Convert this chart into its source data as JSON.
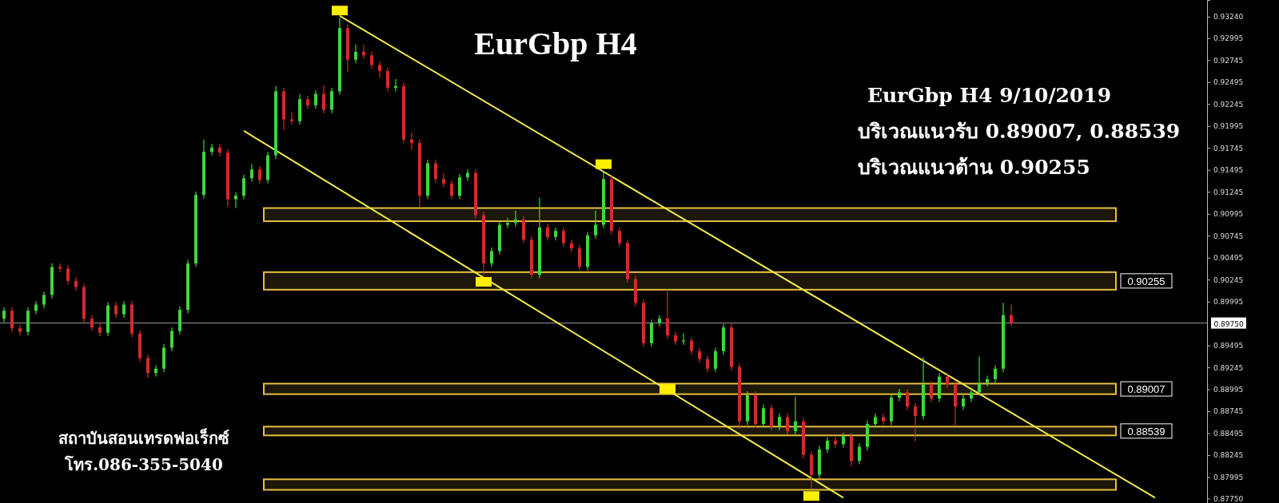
{
  "chart_data": {
    "type": "candlestick",
    "title": "EurGbp H4",
    "annotations": [
      "EurGbp H4 9/10/2019",
      "บริเวณแนวรับ 0.89007, 0.88539",
      "บริเวณแนวต้าน 0.90255",
      "สถาบันสอนเทรดฟอเร็กซ์",
      "โทร.086-355-5040"
    ],
    "categories": [
      null,
      null,
      null,
      null,
      null,
      null,
      null,
      null,
      null,
      null,
      null,
      null,
      null,
      null,
      null,
      null,
      null,
      null,
      null,
      null,
      null,
      null,
      null,
      null,
      null,
      null,
      null,
      null,
      null,
      null,
      null,
      null,
      null,
      null,
      null,
      null,
      null,
      null,
      null,
      null,
      null,
      null,
      null,
      null,
      null,
      null,
      null,
      null,
      null,
      null,
      null,
      null,
      null,
      null,
      null,
      null,
      null,
      null,
      null,
      null,
      null,
      null,
      null,
      null,
      null,
      null,
      null,
      null,
      null,
      null,
      null,
      null,
      null,
      null,
      null,
      null,
      null,
      null,
      null,
      null,
      null,
      null,
      null,
      null,
      null,
      null,
      null,
      null,
      null,
      null,
      null,
      null,
      null,
      null,
      null,
      null,
      null,
      null,
      null,
      null,
      null,
      null,
      null,
      null,
      null,
      null,
      null,
      null,
      null,
      null,
      null,
      null,
      null,
      null,
      null,
      null,
      null,
      null,
      null,
      null,
      null,
      null,
      null,
      null,
      null,
      null,
      null,
      null,
      null,
      null,
      null,
      null,
      null,
      null,
      null,
      null,
      null,
      null,
      null,
      null,
      null,
      null,
      null,
      null,
      null,
      null,
      null,
      null,
      null,
      null,
      null
    ],
    "ohlc": [
      [
        0.898,
        0.8993,
        0.8976,
        0.8989
      ],
      [
        0.8989,
        0.8993,
        0.8965,
        0.8969
      ],
      [
        0.8969,
        0.8973,
        0.8961,
        0.8965
      ],
      [
        0.8965,
        0.8993,
        0.8961,
        0.8989
      ],
      [
        0.8989,
        0.9,
        0.8985,
        0.8996
      ],
      [
        0.8996,
        0.9011,
        0.8992,
        0.9007
      ],
      [
        0.9007,
        0.9043,
        0.9003,
        0.9039
      ],
      [
        0.9039,
        0.9043,
        0.9033,
        0.9037
      ],
      [
        0.9037,
        0.9041,
        0.9019,
        0.9023
      ],
      [
        0.9023,
        0.9027,
        0.9012,
        0.9016
      ],
      [
        0.9016,
        0.902,
        0.8976,
        0.898
      ],
      [
        0.898,
        0.8984,
        0.8966,
        0.897
      ],
      [
        0.897,
        0.8974,
        0.896,
        0.8964
      ],
      [
        0.8964,
        0.8999,
        0.896,
        0.8995
      ],
      [
        0.8995,
        0.8999,
        0.8981,
        0.8985
      ],
      [
        0.8985,
        0.9,
        0.8981,
        0.8996
      ],
      [
        0.8996,
        0.9,
        0.8959,
        0.8963
      ],
      [
        0.8963,
        0.8967,
        0.8931,
        0.8935
      ],
      [
        0.8935,
        0.8939,
        0.8912,
        0.8918
      ],
      [
        0.8918,
        0.8927,
        0.8914,
        0.8923
      ],
      [
        0.8923,
        0.8951,
        0.8919,
        0.8947
      ],
      [
        0.8947,
        0.897,
        0.8943,
        0.8966
      ],
      [
        0.8966,
        0.8994,
        0.8962,
        0.899
      ],
      [
        0.899,
        0.9047,
        0.8986,
        0.9043
      ],
      [
        0.9043,
        0.9125,
        0.9039,
        0.9121
      ],
      [
        0.9121,
        0.9184,
        0.9117,
        0.917
      ],
      [
        0.917,
        0.9179,
        0.9166,
        0.9175
      ],
      [
        0.9175,
        0.9179,
        0.9165,
        0.9169
      ],
      [
        0.9169,
        0.9173,
        0.9108,
        0.9116
      ],
      [
        0.9116,
        0.9124,
        0.9106,
        0.912
      ],
      [
        0.912,
        0.9144,
        0.9116,
        0.914
      ],
      [
        0.914,
        0.9156,
        0.9136,
        0.915
      ],
      [
        0.915,
        0.9154,
        0.9134,
        0.9138
      ],
      [
        0.9138,
        0.917,
        0.9134,
        0.9166
      ],
      [
        0.9166,
        0.9245,
        0.9162,
        0.9239
      ],
      [
        0.9239,
        0.9243,
        0.9195,
        0.9207
      ],
      [
        0.9207,
        0.9215,
        0.9201,
        0.9205
      ],
      [
        0.9205,
        0.9236,
        0.9201,
        0.923
      ],
      [
        0.923,
        0.9234,
        0.9219,
        0.9223
      ],
      [
        0.9223,
        0.924,
        0.9219,
        0.9236
      ],
      [
        0.9236,
        0.9246,
        0.9214,
        0.9218
      ],
      [
        0.9218,
        0.9243,
        0.9214,
        0.9239
      ],
      [
        0.9239,
        0.9323,
        0.9235,
        0.9311
      ],
      [
        0.9311,
        0.9315,
        0.9261,
        0.9275
      ],
      [
        0.9275,
        0.9292,
        0.9271,
        0.9284
      ],
      [
        0.9284,
        0.9292,
        0.9276,
        0.928
      ],
      [
        0.928,
        0.9284,
        0.9265,
        0.9269
      ],
      [
        0.9269,
        0.9273,
        0.9254,
        0.9262
      ],
      [
        0.9262,
        0.9266,
        0.9239,
        0.9243
      ],
      [
        0.9243,
        0.9253,
        0.9239,
        0.9245
      ],
      [
        0.9245,
        0.9249,
        0.918,
        0.9184
      ],
      [
        0.9184,
        0.9192,
        0.9172,
        0.918
      ],
      [
        0.918,
        0.9184,
        0.9107,
        0.912
      ],
      [
        0.912,
        0.9161,
        0.9116,
        0.9157
      ],
      [
        0.9157,
        0.9161,
        0.9135,
        0.9139
      ],
      [
        0.9139,
        0.9146,
        0.913,
        0.9134
      ],
      [
        0.9134,
        0.9138,
        0.9116,
        0.912
      ],
      [
        0.912,
        0.9145,
        0.9116,
        0.9141
      ],
      [
        0.9141,
        0.915,
        0.9137,
        0.9146
      ],
      [
        0.9146,
        0.915,
        0.9094,
        0.9098
      ],
      [
        0.9098,
        0.9102,
        0.903,
        0.9043
      ],
      [
        0.9043,
        0.9061,
        0.9039,
        0.9057
      ],
      [
        0.9057,
        0.9091,
        0.9053,
        0.9087
      ],
      [
        0.9087,
        0.9095,
        0.9083,
        0.9089
      ],
      [
        0.9089,
        0.9103,
        0.9085,
        0.9093
      ],
      [
        0.9093,
        0.9097,
        0.9066,
        0.907
      ],
      [
        0.907,
        0.9074,
        0.9026,
        0.903
      ],
      [
        0.903,
        0.9118,
        0.9026,
        0.9084
      ],
      [
        0.9084,
        0.9088,
        0.9069,
        0.9073
      ],
      [
        0.9073,
        0.9084,
        0.9069,
        0.908
      ],
      [
        0.908,
        0.9084,
        0.9062,
        0.9066
      ],
      [
        0.9066,
        0.907,
        0.9056,
        0.906
      ],
      [
        0.906,
        0.9064,
        0.9035,
        0.9039
      ],
      [
        0.9039,
        0.9079,
        0.9035,
        0.9075
      ],
      [
        0.9075,
        0.9103,
        0.9071,
        0.9087
      ],
      [
        0.9087,
        0.9148,
        0.9083,
        0.9139
      ],
      [
        0.9139,
        0.9143,
        0.9076,
        0.908
      ],
      [
        0.908,
        0.9084,
        0.9062,
        0.9066
      ],
      [
        0.9066,
        0.907,
        0.9021,
        0.9025
      ],
      [
        0.9025,
        0.9029,
        0.8994,
        0.8998
      ],
      [
        0.8998,
        0.9002,
        0.8948,
        0.8952
      ],
      [
        0.8952,
        0.8979,
        0.8948,
        0.8975
      ],
      [
        0.8975,
        0.8984,
        0.8971,
        0.898
      ],
      [
        0.898,
        0.9013,
        0.8957,
        0.8961
      ],
      [
        0.8961,
        0.8965,
        0.895,
        0.8954
      ],
      [
        0.8954,
        0.8963,
        0.895,
        0.8955
      ],
      [
        0.8955,
        0.8959,
        0.8939,
        0.8943
      ],
      [
        0.8943,
        0.8947,
        0.893,
        0.8934
      ],
      [
        0.8934,
        0.8938,
        0.8919,
        0.8923
      ],
      [
        0.8923,
        0.8947,
        0.8919,
        0.8943
      ],
      [
        0.8943,
        0.8974,
        0.8939,
        0.897
      ],
      [
        0.897,
        0.8974,
        0.8921,
        0.8925
      ],
      [
        0.8925,
        0.8929,
        0.8855,
        0.8863
      ],
      [
        0.8863,
        0.8897,
        0.8859,
        0.8893
      ],
      [
        0.8893,
        0.8897,
        0.8856,
        0.886
      ],
      [
        0.886,
        0.8882,
        0.8856,
        0.8878
      ],
      [
        0.8878,
        0.8882,
        0.8853,
        0.8857
      ],
      [
        0.8857,
        0.8872,
        0.8853,
        0.8868
      ],
      [
        0.8868,
        0.8872,
        0.8848,
        0.8852
      ],
      [
        0.8852,
        0.8891,
        0.8848,
        0.8863
      ],
      [
        0.8863,
        0.8867,
        0.8821,
        0.8825
      ],
      [
        0.8825,
        0.8829,
        0.8786,
        0.8802
      ],
      [
        0.8802,
        0.8835,
        0.8798,
        0.8831
      ],
      [
        0.8831,
        0.8845,
        0.8827,
        0.8841
      ],
      [
        0.8841,
        0.8845,
        0.8833,
        0.8837
      ],
      [
        0.8837,
        0.885,
        0.8833,
        0.8846
      ],
      [
        0.8846,
        0.885,
        0.8812,
        0.8818
      ],
      [
        0.8818,
        0.8838,
        0.8814,
        0.8834
      ],
      [
        0.8834,
        0.8864,
        0.883,
        0.886
      ],
      [
        0.886,
        0.8872,
        0.8856,
        0.8868
      ],
      [
        0.8868,
        0.8872,
        0.8859,
        0.8863
      ],
      [
        0.8863,
        0.8894,
        0.8859,
        0.889
      ],
      [
        0.889,
        0.89,
        0.8886,
        0.8896
      ],
      [
        0.8896,
        0.89,
        0.8876,
        0.888
      ],
      [
        0.888,
        0.8884,
        0.884,
        0.8869
      ],
      [
        0.8869,
        0.8936,
        0.8865,
        0.8905
      ],
      [
        0.8905,
        0.8909,
        0.8885,
        0.8889
      ],
      [
        0.8889,
        0.8918,
        0.8885,
        0.8914
      ],
      [
        0.8914,
        0.8918,
        0.8901,
        0.8905
      ],
      [
        0.8905,
        0.8909,
        0.8857,
        0.888
      ],
      [
        0.888,
        0.8893,
        0.8876,
        0.8889
      ],
      [
        0.8889,
        0.89,
        0.8885,
        0.8896
      ],
      [
        0.8896,
        0.8937,
        0.8892,
        0.8907
      ],
      [
        0.8907,
        0.8915,
        0.8903,
        0.8911
      ],
      [
        0.8911,
        0.8927,
        0.8907,
        0.8923
      ],
      [
        0.8923,
        0.8998,
        0.8919,
        0.8984
      ],
      [
        0.8984,
        0.8996,
        0.8971,
        0.8975
      ],
      null,
      null,
      null,
      null,
      null,
      null,
      null,
      null,
      null,
      null,
      null,
      null,
      null,
      null,
      null,
      null,
      null,
      null,
      null,
      null,
      null,
      null,
      null,
      null
    ],
    "colors": [
      "#3ed63e",
      "#d42a2a",
      "#d42a2a",
      "#3ed63e",
      "#3ed63e",
      "#3ed63e",
      "#3ed63e",
      "#d42a2a",
      "#d42a2a",
      "#d42a2a",
      "#d42a2a",
      "#d42a2a",
      "#d42a2a",
      "#3ed63e",
      "#d42a2a",
      "#3ed63e",
      "#d42a2a",
      "#d42a2a",
      "#d42a2a",
      "#3ed63e",
      "#3ed63e",
      "#3ed63e",
      "#3ed63e",
      "#3ed63e",
      "#3ed63e",
      "#3ed63e",
      "#3ed63e",
      "#d42a2a",
      "#d42a2a",
      "#3ed63e",
      "#3ed63e",
      "#3ed63e",
      "#d42a2a",
      "#3ed63e",
      "#3ed63e",
      "#d42a2a",
      "#d42a2a",
      "#3ed63e",
      "#d42a2a",
      "#3ed63e",
      "#d42a2a",
      "#3ed63e",
      "#3ed63e",
      "#d42a2a",
      "#3ed63e",
      "#d42a2a",
      "#d42a2a",
      "#d42a2a",
      "#d42a2a",
      "#3ed63e",
      "#d42a2a",
      "#d42a2a",
      "#d42a2a",
      "#3ed63e",
      "#d42a2a",
      "#d42a2a",
      "#d42a2a",
      "#3ed63e",
      "#3ed63e",
      "#d42a2a",
      "#d42a2a",
      "#3ed63e",
      "#3ed63e",
      "#3ed63e",
      "#3ed63e",
      "#d42a2a",
      "#d42a2a",
      "#3ed63e",
      "#d42a2a",
      "#3ed63e",
      "#d42a2a",
      "#d42a2a",
      "#d42a2a",
      "#3ed63e",
      "#3ed63e",
      "#3ed63e",
      "#d42a2a",
      "#d42a2a",
      "#d42a2a",
      "#d42a2a",
      "#d42a2a",
      "#3ed63e",
      "#3ed63e",
      "#d42a2a",
      "#d42a2a",
      "#3ed63e",
      "#d42a2a",
      "#d42a2a",
      "#d42a2a",
      "#3ed63e",
      "#3ed63e",
      "#d42a2a",
      "#d42a2a",
      "#3ed63e",
      "#d42a2a",
      "#3ed63e",
      "#d42a2a",
      "#3ed63e",
      "#d42a2a",
      "#3ed63e",
      "#d42a2a",
      "#d42a2a",
      "#3ed63e",
      "#3ed63e",
      "#d42a2a",
      "#3ed63e",
      "#d42a2a",
      "#3ed63e",
      "#3ed63e",
      "#3ed63e",
      "#d42a2a",
      "#3ed63e",
      "#3ed63e",
      "#d42a2a",
      "#d42a2a",
      "#3ed63e",
      "#d42a2a",
      "#3ed63e",
      "#d42a2a",
      "#d42a2a",
      "#3ed63e",
      "#3ed63e",
      "#3ed63e",
      "#3ed63e",
      "#3ed63e",
      "#3ed63e",
      "#d42a2a",
      null,
      null,
      null,
      null,
      null,
      null,
      null,
      null,
      null,
      null,
      null,
      null,
      null,
      null,
      null,
      null,
      null,
      null,
      null,
      null,
      null,
      null,
      null,
      null
    ],
    "series": [
      {
        "type": "line",
        "color": "#f2ea4a",
        "values": [
          null,
          null,
          null,
          null,
          null,
          null,
          null,
          null,
          null,
          null,
          null,
          null,
          null,
          null,
          null,
          null,
          null,
          null,
          null,
          null,
          null,
          null,
          null,
          null,
          null,
          null,
          null,
          null,
          null,
          null,
          null,
          null,
          null,
          null,
          null,
          null,
          null,
          null,
          null,
          null,
          null,
          null,
          0.9325,
          null,
          null,
          null,
          null,
          null,
          null,
          null,
          null,
          null,
          null,
          null,
          null,
          null,
          null,
          null,
          null,
          null,
          null,
          null,
          null,
          null,
          null,
          null,
          null,
          null,
          null,
          null,
          null,
          null,
          null,
          null,
          null,
          null,
          null,
          null,
          null,
          null,
          null,
          null,
          null,
          null,
          null,
          null,
          null,
          null,
          null,
          null,
          null,
          null,
          null,
          null,
          null,
          null,
          null,
          null,
          null,
          null,
          null,
          null,
          null,
          null,
          null,
          null,
          null,
          null,
          null,
          null,
          null,
          null,
          null,
          null,
          null,
          null,
          null,
          null,
          null,
          null,
          null,
          null,
          null,
          null,
          null,
          null,
          null,
          null,
          null,
          null,
          null,
          null,
          null,
          null,
          null,
          null,
          null,
          null,
          null,
          null,
          null,
          null,
          null,
          null,
          0.8776,
          null,
          null,
          null,
          null,
          null,
          null
        ]
      },
      {
        "type": "line",
        "color": "#f2ea4a",
        "values": [
          null,
          null,
          null,
          null,
          null,
          null,
          null,
          null,
          null,
          null,
          null,
          null,
          null,
          null,
          null,
          null,
          null,
          null,
          null,
          null,
          null,
          null,
          null,
          null,
          null,
          null,
          null,
          null,
          null,
          null,
          0.9194,
          null,
          null,
          null,
          null,
          null,
          null,
          null,
          null,
          null,
          null,
          null,
          null,
          null,
          null,
          null,
          null,
          null,
          null,
          null,
          null,
          null,
          null,
          null,
          null,
          null,
          null,
          null,
          null,
          null,
          null,
          null,
          null,
          null,
          null,
          null,
          null,
          null,
          null,
          null,
          null,
          null,
          null,
          null,
          null,
          null,
          null,
          null,
          null,
          null,
          null,
          null,
          null,
          null,
          null,
          null,
          null,
          null,
          null,
          null,
          null,
          null,
          null,
          null,
          null,
          null,
          null,
          null,
          null,
          null,
          null,
          null,
          null,
          null,
          null,
          0.8776,
          null,
          null,
          null,
          null,
          null,
          null,
          null,
          null,
          null,
          null,
          null,
          null,
          null,
          null,
          null,
          null,
          null,
          null,
          null,
          null,
          null,
          null,
          null,
          null,
          null,
          null,
          null,
          null,
          null,
          null,
          null,
          null,
          null,
          null,
          null,
          null,
          null,
          null,
          null,
          null,
          null,
          null,
          null,
          null,
          null
        ]
      },
      {
        "type": "scatter",
        "color": "#ffee00",
        "marker": "square",
        "values": [
          null,
          null,
          null,
          null,
          null,
          null,
          null,
          null,
          null,
          null,
          null,
          null,
          null,
          null,
          null,
          null,
          null,
          null,
          null,
          null,
          null,
          null,
          null,
          null,
          null,
          null,
          null,
          null,
          null,
          null,
          null,
          null,
          null,
          null,
          null,
          null,
          null,
          null,
          null,
          null,
          null,
          null,
          0.9331,
          null,
          null,
          null,
          null,
          null,
          null,
          null,
          null,
          null,
          null,
          null,
          null,
          null,
          null,
          null,
          null,
          null,
          0.9022,
          null,
          null,
          null,
          null,
          null,
          null,
          null,
          null,
          null,
          null,
          null,
          null,
          null,
          null,
          0.9156,
          null,
          null,
          null,
          null,
          null,
          null,
          null,
          0.89,
          null,
          null,
          null,
          null,
          null,
          null,
          null,
          null,
          null,
          null,
          null,
          null,
          null,
          null,
          null,
          null,
          null,
          0.8778,
          null,
          null,
          null,
          null,
          null,
          null,
          null,
          null,
          null,
          null,
          null,
          null,
          null,
          null,
          null,
          null,
          null,
          null,
          null,
          null,
          null,
          null,
          null,
          null,
          null,
          null,
          null,
          null,
          null,
          null,
          null,
          null,
          null,
          null,
          null,
          null,
          null,
          null,
          null,
          null,
          null,
          null,
          null,
          null,
          null,
          null,
          null,
          null,
          null
        ]
      }
    ],
    "bands": [
      {
        "axis": "y",
        "from": 0.9091,
        "to": 0.9106,
        "color": "#e6c040"
      },
      {
        "axis": "y",
        "from": 0.9013,
        "to": 0.9033,
        "label": "0.90255",
        "color": "#e6c040"
      },
      {
        "axis": "y",
        "from": 0.8894,
        "to": 0.8906,
        "label": "0.89007",
        "color": "#e6c040"
      },
      {
        "axis": "y",
        "from": 0.8847,
        "to": 0.8857,
        "label": "0.88539",
        "color": "#e6c040"
      },
      {
        "axis": "y",
        "from": 0.8785,
        "to": 0.8797,
        "color": "#e6c040"
      }
    ],
    "ref_lines": [
      {
        "axis": "y",
        "value": 0.8975,
        "label": "0.89750",
        "color": "#9a9a9a"
      }
    ],
    "ylim": [
      0.877,
      0.9343
    ],
    "yticks": [
      {
        "value": 0.9324,
        "label": "0.93240"
      },
      0.92995,
      0.92745,
      0.92495,
      0.92245,
      0.91995,
      0.91745,
      0.91495,
      0.91245,
      0.90995,
      0.90745,
      0.90495,
      0.90245,
      0.89995,
      0.89495,
      0.89245,
      0.88995,
      0.88745,
      0.88495,
      0.88245,
      0.87995,
      {
        "value": 0.8775,
        "label": "0.87750"
      }
    ],
    "tick_labels": "y",
    "grid": false
  }
}
